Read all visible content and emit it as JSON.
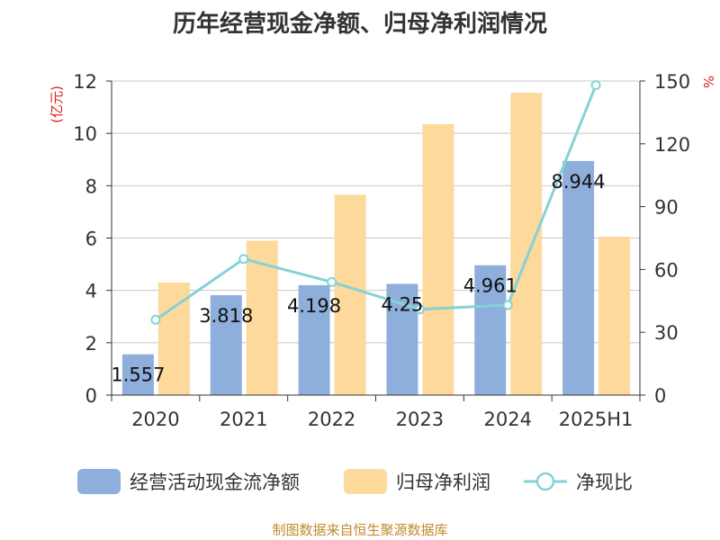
{
  "title": "历年经营现金净额、归母净利润情况",
  "source": "制图数据来自恒生聚源数据库",
  "chart_data": {
    "type": "bar",
    "categories": [
      "2020",
      "2021",
      "2022",
      "2023",
      "2024",
      "2025H1"
    ],
    "left_axis": {
      "unit": "(亿元)",
      "ylim": [
        0,
        12
      ],
      "ticks": [
        0,
        2,
        4,
        6,
        8,
        10,
        12
      ]
    },
    "right_axis": {
      "unit": "%",
      "ylim": [
        0,
        150
      ],
      "ticks": [
        0,
        30,
        60,
        90,
        120,
        150
      ]
    },
    "series": [
      {
        "name": "经营活动现金流净额",
        "type": "bar",
        "axis": "left",
        "color": "#8eaedb",
        "values": [
          1.557,
          3.818,
          4.198,
          4.25,
          4.961,
          8.944
        ],
        "labels": [
          "1.557",
          "3.818",
          "4.198",
          "4.25",
          "4.961",
          "8.944"
        ]
      },
      {
        "name": "归母净利润",
        "type": "bar",
        "axis": "left",
        "color": "#fdd99b",
        "values": [
          4.3,
          5.9,
          7.65,
          10.35,
          11.55,
          6.05
        ]
      },
      {
        "name": "净现比",
        "type": "line",
        "axis": "right",
        "color": "#86d2d6",
        "values": [
          36,
          65,
          54,
          41,
          43,
          148
        ]
      }
    ],
    "grid": true,
    "legend_position": "bottom"
  }
}
